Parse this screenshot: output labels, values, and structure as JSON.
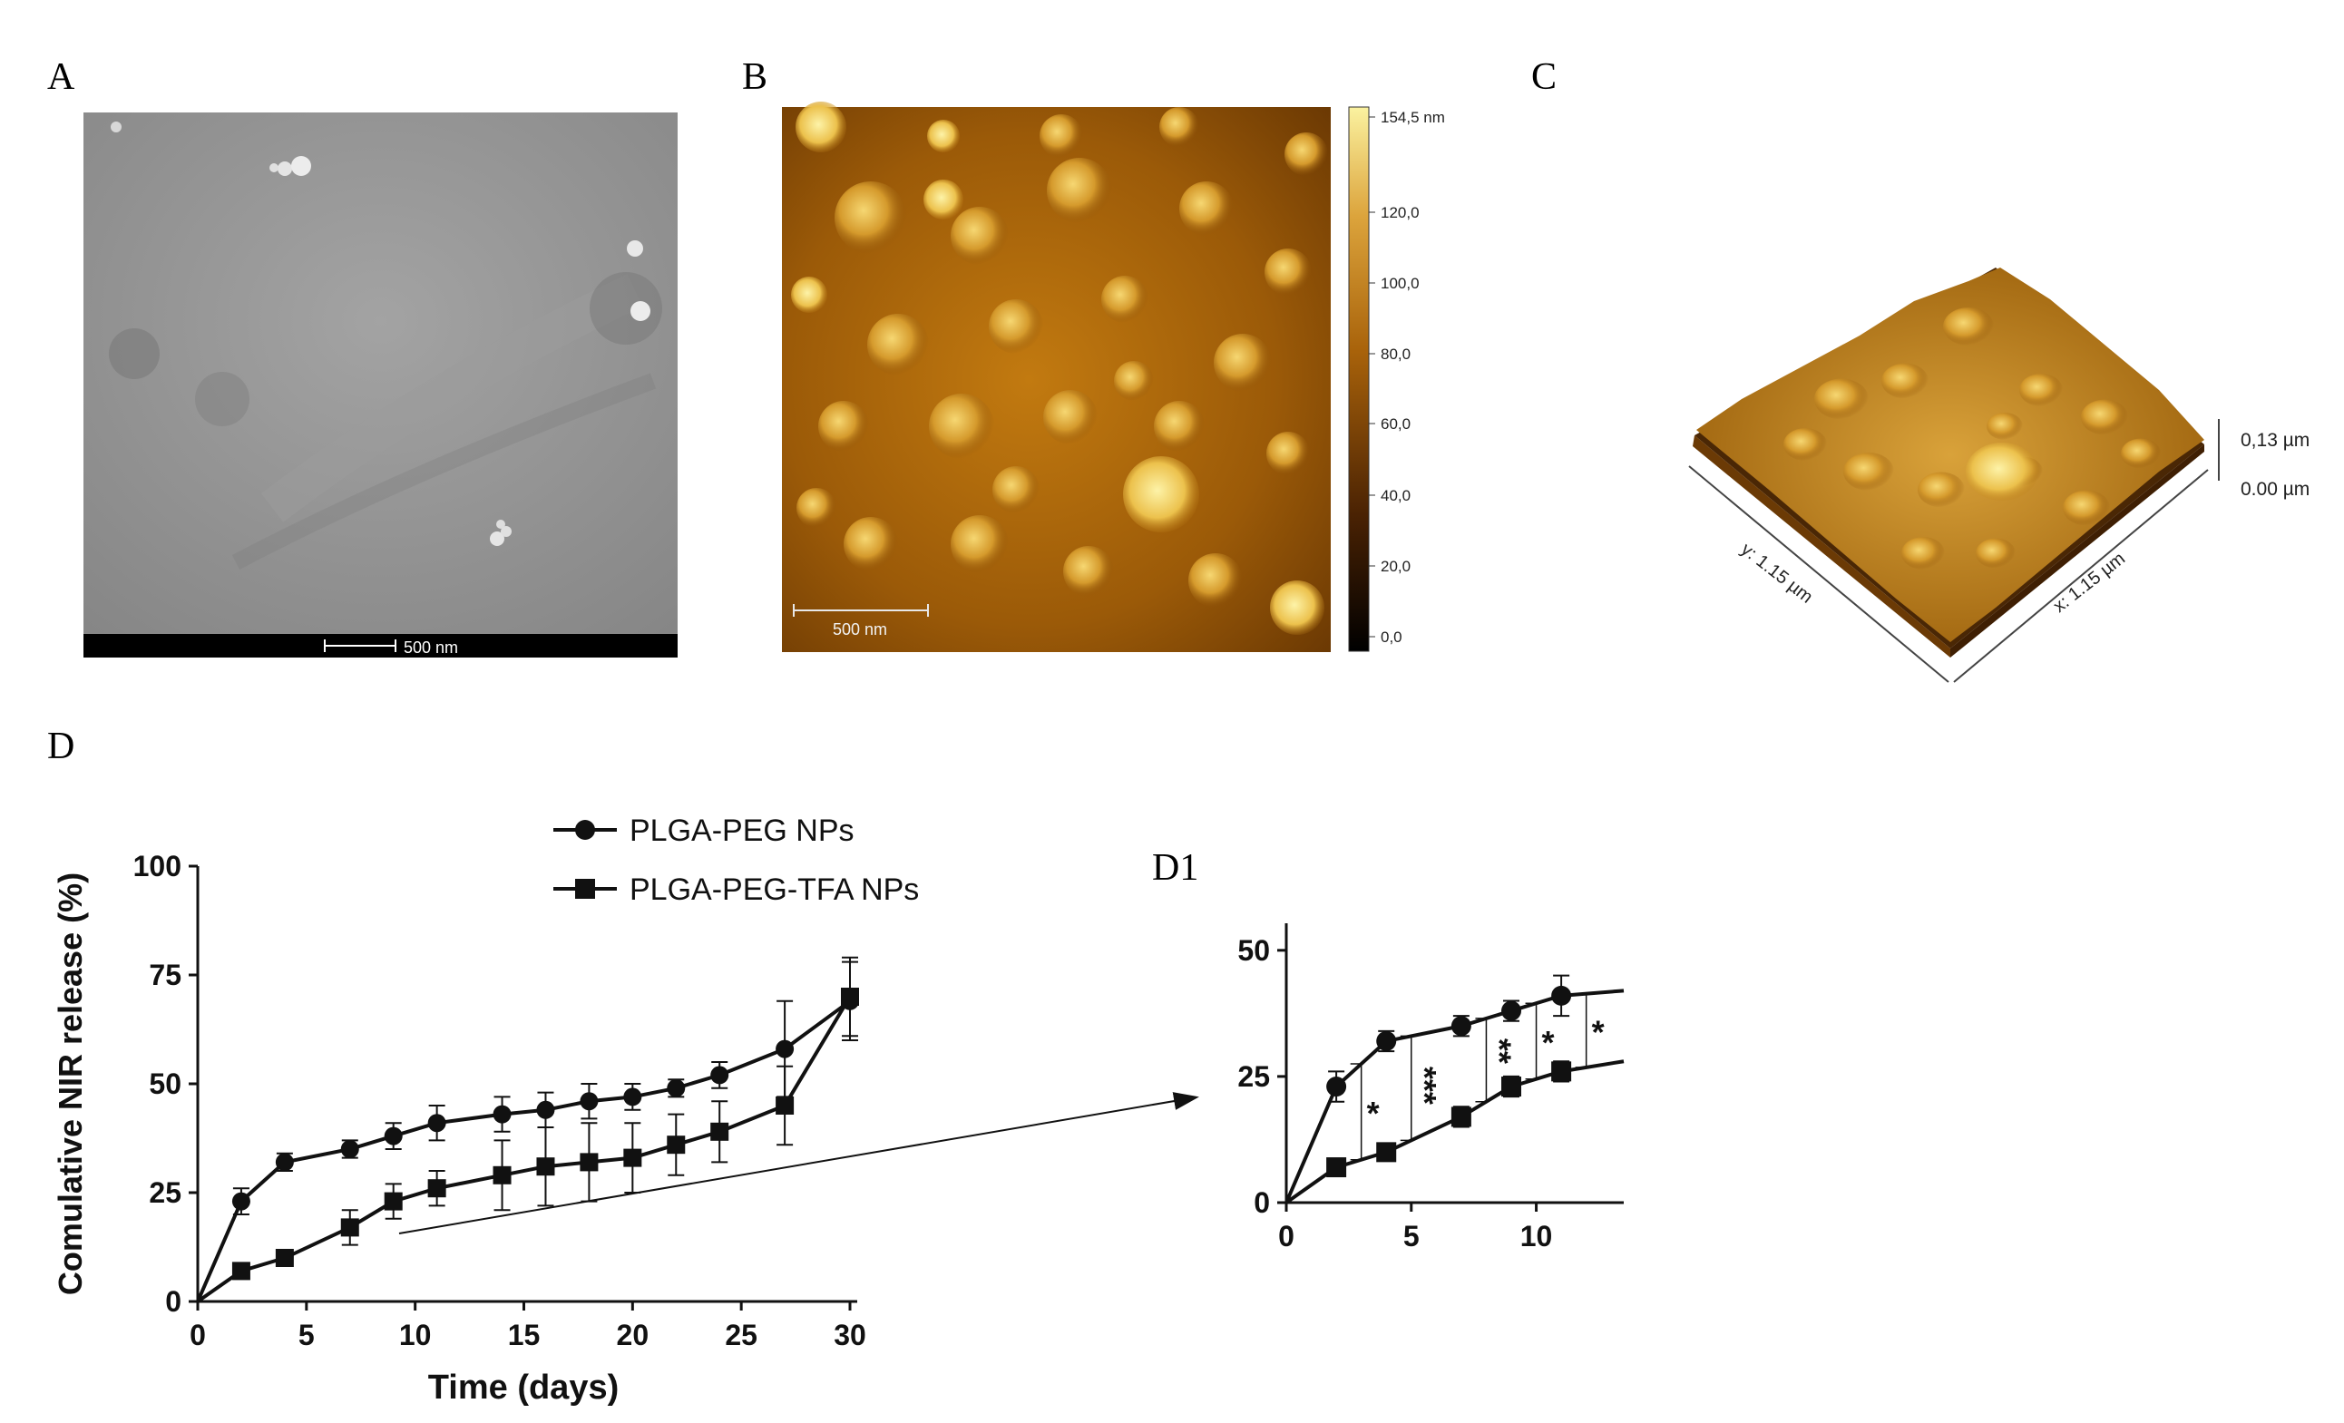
{
  "panel_letters": {
    "a": "A",
    "b": "B",
    "c": "C",
    "d": "D",
    "d1": "D1"
  },
  "panel_a": {
    "scale_bar": "500 nm"
  },
  "panel_b": {
    "scale_bar": "500 nm",
    "colorbar_labels": [
      "154,5 nm",
      "120,0",
      "100,0",
      "80,0",
      "60,0",
      "40,0",
      "20,0",
      "0,0"
    ]
  },
  "panel_c": {
    "z_top": "0,13 µm",
    "z_bottom": "0.00 µm",
    "x_axis": "x: 1.15 µm",
    "y_axis": "y: 1.15 µm"
  },
  "colors": {
    "line": "#111111",
    "afm_dark": "#2a1000",
    "afm_mid": "#b5700c",
    "afm_light": "#f7e27a",
    "tem_bg": "#8f8f8f"
  },
  "chart_data": [
    {
      "type": "line",
      "xlabel": "Time (days)",
      "ylabel": "Comulative NIR release (%)",
      "xlim": [
        0,
        30
      ],
      "ylim": [
        0,
        100
      ],
      "xticks": [
        0,
        5,
        10,
        15,
        20,
        25,
        30
      ],
      "yticks": [
        0,
        25,
        50,
        75,
        100
      ],
      "legend_position": "top",
      "series": [
        {
          "name": "PLGA-PEG NPs",
          "marker": "circle",
          "x": [
            0,
            2,
            4,
            7,
            9,
            11,
            14,
            16,
            18,
            20,
            22,
            24,
            27,
            30
          ],
          "y": [
            0,
            23,
            32,
            35,
            38,
            41,
            43,
            44,
            46,
            47,
            49,
            52,
            58,
            69
          ],
          "err": [
            0,
            3,
            2,
            2,
            3,
            4,
            4,
            4,
            4,
            3,
            2,
            3,
            11,
            9
          ]
        },
        {
          "name": "PLGA-PEG-TFA NPs",
          "marker": "square",
          "x": [
            0,
            2,
            4,
            7,
            9,
            11,
            14,
            16,
            18,
            20,
            22,
            24,
            27,
            30
          ],
          "y": [
            0,
            7,
            10,
            17,
            23,
            26,
            29,
            31,
            32,
            33,
            36,
            39,
            45,
            70
          ],
          "err": [
            0,
            1,
            1,
            4,
            4,
            4,
            8,
            9,
            9,
            8,
            7,
            7,
            9,
            9
          ]
        }
      ]
    },
    {
      "type": "line",
      "title": "D1",
      "xlim": [
        0,
        13.5
      ],
      "ylim": [
        0,
        55
      ],
      "xticks": [
        0,
        5,
        10
      ],
      "yticks": [
        0,
        25,
        50
      ],
      "series": [
        {
          "name": "PLGA-PEG NPs",
          "marker": "circle",
          "x": [
            0,
            2,
            4,
            7,
            9,
            11,
            13.5
          ],
          "y": [
            0,
            23,
            32,
            35,
            38,
            41,
            42
          ],
          "err": [
            0,
            3,
            2,
            2,
            2,
            4,
            0
          ],
          "marker_count": 5
        },
        {
          "name": "PLGA-PEG-TFA NPs",
          "marker": "square",
          "x": [
            0,
            2,
            4,
            7,
            9,
            11,
            13.5
          ],
          "y": [
            0,
            7,
            10,
            17,
            23,
            26,
            28
          ],
          "err": [
            0,
            1,
            1,
            2,
            2,
            2,
            0
          ],
          "marker_count": 5
        }
      ],
      "significance": [
        {
          "x": 3,
          "label": "*"
        },
        {
          "x": 5,
          "label": "***"
        },
        {
          "x": 8,
          "label": "**"
        },
        {
          "x": 10,
          "label": "*"
        },
        {
          "x": 12,
          "label": "*"
        }
      ]
    }
  ]
}
